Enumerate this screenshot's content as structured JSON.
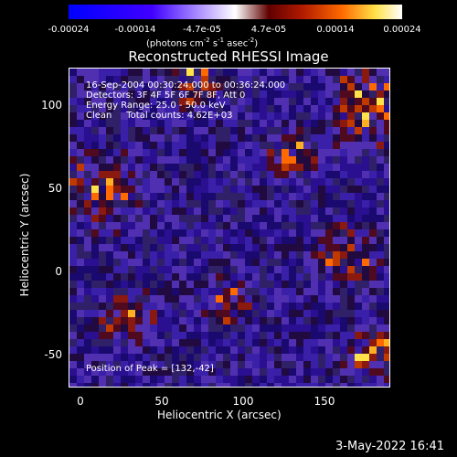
{
  "colorbar": {
    "tick_labels": [
      "-0.00024",
      "-0.00014",
      "-4.7e-05",
      "4.7e-05",
      "0.00014",
      "0.00024"
    ],
    "units": "(photons cm",
    "units_exp1": "-2",
    "units_mid": " s",
    "units_exp2": "-1",
    "units_mid2": " asec",
    "units_exp3": "-2",
    "units_end": ")"
  },
  "title": "Reconstructed RHESSI Image",
  "annotations": {
    "time_range": "16-Sep-2004 00:30:24.000 to 00:36:24.000",
    "detectors": "Detectors: 3F 4F 5F 6F 7F 8F, Att 0",
    "energy": "Energy Range: 25.0 - 50.0 keV",
    "method": "Clean     Total counts: 4.62E+03",
    "peak": "Position of Peak = [132,-42]"
  },
  "axes": {
    "xlabel": "Heliocentric X (arcsec)",
    "ylabel": "Heliocentric Y (arcsec)",
    "x_ticks": [
      "0",
      "50",
      "100",
      "150"
    ],
    "y_ticks": [
      "100",
      "50",
      "0",
      "-50"
    ],
    "xlim": [
      -7,
      183
    ],
    "ylim": [
      -70,
      118
    ]
  },
  "timestamp": "3-May-2022 16:41",
  "colors": {
    "positive_peak": "#ffe24a",
    "negative": "#2a0a55"
  }
}
